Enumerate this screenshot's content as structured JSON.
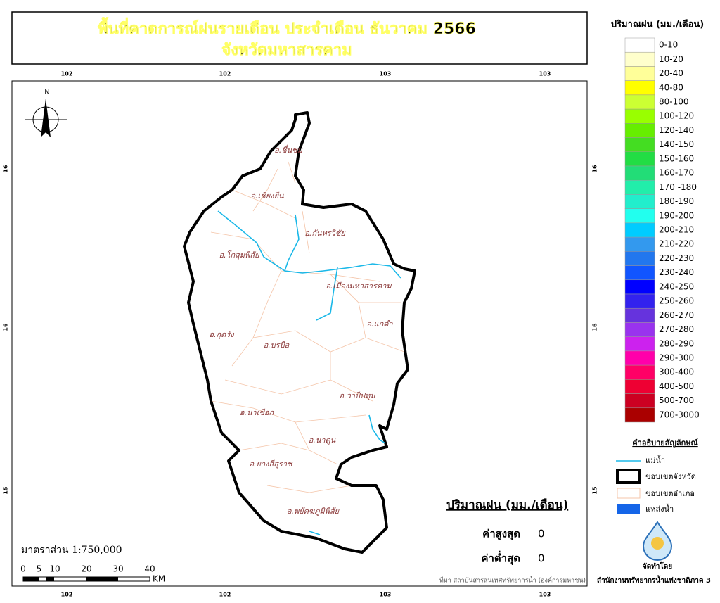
{
  "title": {
    "line1": "พื้นที่คาดการณ์ฝนรายเดือน ประจำเดือน ธันวาคม 2566",
    "line2": "จังหวัดมหาสารคาม"
  },
  "north": "N",
  "grid_labels": {
    "top": [
      102,
      102,
      103,
      103
    ],
    "bottom": [
      102,
      102,
      103,
      103
    ],
    "left": [
      16,
      16,
      15
    ],
    "right": [
      16,
      16,
      15
    ]
  },
  "districts": [
    "อ.ชื่นชม",
    "อ.เชียงยืน",
    "อ.กันทรวิชัย",
    "อ.โกสุมพิสัย",
    "อ.เมืองมหาสารคาม",
    "อ.แกดำ",
    "อ.กุดรัง",
    "อ.บรบือ",
    "อ.วาปีปทุม",
    "อ.นาเชือก",
    "อ.นาดูน",
    "อ.ยางสีสุราช",
    "อ.พยัคฆภูมิพิสัย"
  ],
  "rain_legend": {
    "title": "ปริมาณฝน (มม./เดือน)",
    "classes": [
      {
        "label": "0-10",
        "color": "#ffffff"
      },
      {
        "label": "10-20",
        "color": "#ffffcc"
      },
      {
        "label": "20-40",
        "color": "#ffff99"
      },
      {
        "label": "40-80",
        "color": "#ffff00"
      },
      {
        "label": "80-100",
        "color": "#ccff33"
      },
      {
        "label": "100-120",
        "color": "#99ff00"
      },
      {
        "label": "120-140",
        "color": "#66ee00"
      },
      {
        "label": "140-150",
        "color": "#44dd22"
      },
      {
        "label": "150-160",
        "color": "#22dd44"
      },
      {
        "label": "160-170",
        "color": "#22dd77"
      },
      {
        "label": "170 -180",
        "color": "#22eeaa"
      },
      {
        "label": "180-190",
        "color": "#22eecc"
      },
      {
        "label": "190-200",
        "color": "#22ffee"
      },
      {
        "label": "200-210",
        "color": "#00ccff"
      },
      {
        "label": "210-220",
        "color": "#3399ee"
      },
      {
        "label": "220-230",
        "color": "#2277ee"
      },
      {
        "label": "230-240",
        "color": "#1155ff"
      },
      {
        "label": "240-250",
        "color": "#0000ff"
      },
      {
        "label": "250-260",
        "color": "#3322ee"
      },
      {
        "label": "260-270",
        "color": "#6633dd"
      },
      {
        "label": "270-280",
        "color": "#9933ee"
      },
      {
        "label": "280-290",
        "color": "#cc22ee"
      },
      {
        "label": "290-300",
        "color": "#ff00aa"
      },
      {
        "label": "300-400",
        "color": "#ff0066"
      },
      {
        "label": "400-500",
        "color": "#ee0033"
      },
      {
        "label": "500-700",
        "color": "#cc0022"
      },
      {
        "label": "700-3000",
        "color": "#aa0000"
      }
    ]
  },
  "symbol_legend": {
    "title": "คำอธิบายสัญลักษณ์",
    "river": "แม่น้ำ",
    "province": "ขอบเขตจังหวัด",
    "district": "ขอบเขตอำเภอ",
    "water": "แหล่งน้ำ"
  },
  "stats": {
    "title": "ปริมาณฝน (มม./เดือน)",
    "max_label": "ค่าสูงสุด",
    "max": 0,
    "min_label": "ค่าต่ำสุด",
    "min": 0
  },
  "scale": {
    "text": "มาตราส่วน 1:750,000",
    "ticks": [
      0,
      5,
      10,
      20,
      30,
      40
    ],
    "unit": "KM"
  },
  "source": "ที่มา  สถาบันสารสนเทศทรัพยากรน้ำ (องค์การมหาชน)",
  "credit": {
    "label": "จัดทำโดย",
    "org": "สำนักงานทรัพยากรน้ำแห่งชาติภาค 3"
  }
}
